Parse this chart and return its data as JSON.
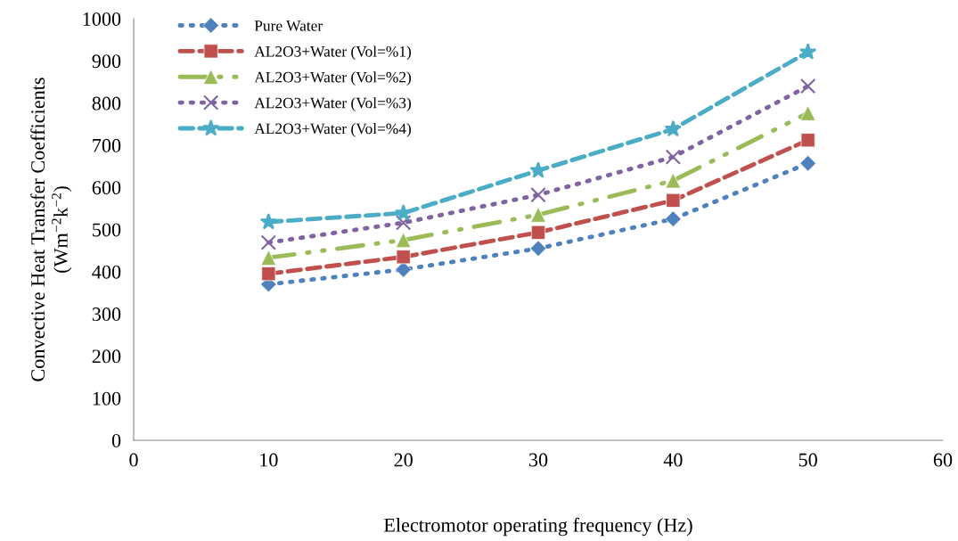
{
  "chart_data": {
    "type": "line",
    "xlabel": "Electromotor operating frequency (Hz)",
    "ylabel": "Convective Heat Transfer Coefficients\n(Wm$^{−2}$k$^{−2}$)",
    "x": [
      10,
      20,
      30,
      40,
      50
    ],
    "xlim": [
      0,
      60
    ],
    "xticks": [
      0,
      10,
      20,
      30,
      40,
      50,
      60
    ],
    "ylim": [
      0,
      1000
    ],
    "yticks": [
      0,
      100,
      200,
      300,
      400,
      500,
      600,
      700,
      800,
      900,
      1000
    ],
    "grid": false,
    "legend": "top left",
    "series": [
      {
        "name": "Pure Water",
        "color": "#4f81bd",
        "values": [
          370,
          405,
          455,
          525,
          657
        ],
        "marker": "diamond",
        "line_style": "dotted"
      },
      {
        "name": "AL2O3+Water (Vol=%1)",
        "color": "#c0504d",
        "values": [
          395,
          435,
          493,
          569,
          712
        ],
        "marker": "square",
        "line_style": "dashed"
      },
      {
        "name": "AL2O3+Water (Vol=%2)",
        "color": "#9bbb59",
        "values": [
          433,
          475,
          535,
          616,
          776
        ],
        "marker": "triangle",
        "line_style": "dashdot"
      },
      {
        "name": "AL2O3+Water (Vol=%3)",
        "color": "#8064a2",
        "values": [
          469,
          516,
          582,
          672,
          840
        ],
        "marker": "cross",
        "line_style": "dotted"
      },
      {
        "name": "AL2O3+Water (Vol=%4)",
        "color": "#4bacc6",
        "values": [
          518,
          539,
          640,
          738,
          921
        ],
        "marker": "star",
        "line_style": "dashed"
      }
    ]
  }
}
